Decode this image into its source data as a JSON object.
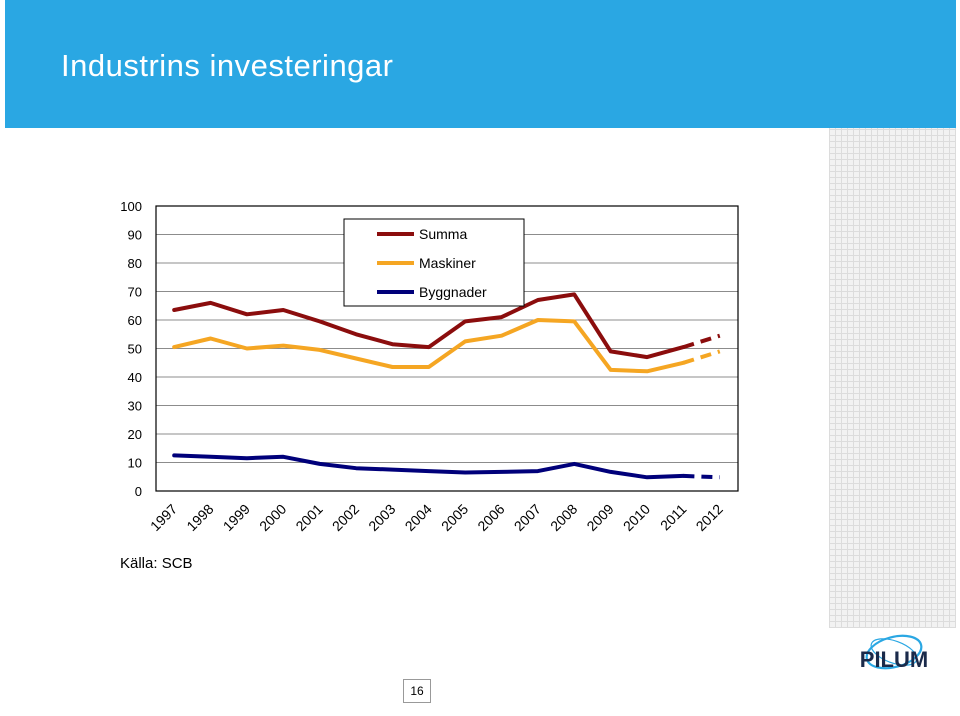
{
  "slide": {
    "title": "Industrins investeringar",
    "source": "Källa: SCB",
    "page_number": "16",
    "logo_text": "PILUM"
  },
  "colors": {
    "header": "#2aa7e3",
    "summa": "#8b0d0d",
    "maskiner": "#f5a623",
    "byggnader": "#00007a"
  },
  "chart_data": {
    "type": "line",
    "title": "",
    "xlabel": "",
    "ylabel": "",
    "ylim": [
      0,
      100
    ],
    "yticks": [
      0,
      10,
      20,
      30,
      40,
      50,
      60,
      70,
      80,
      90,
      100
    ],
    "x": [
      "1997",
      "1998",
      "1999",
      "2000",
      "2001",
      "2002",
      "2003",
      "2004",
      "2005",
      "2006",
      "2007",
      "2008",
      "2009",
      "2010",
      "2011",
      "2012"
    ],
    "grid": "horizontal",
    "legend_position": "top-center",
    "forecast_from": "2011",
    "series": [
      {
        "name": "Summa",
        "values": [
          63.5,
          66,
          62,
          63.5,
          59.5,
          55,
          51.5,
          50.5,
          59.5,
          61,
          67,
          69,
          49,
          47,
          50.5,
          54.5
        ]
      },
      {
        "name": "Maskiner",
        "values": [
          50.5,
          53.5,
          50,
          51,
          49.5,
          46.5,
          43.5,
          43.5,
          52.5,
          54.5,
          60,
          59.5,
          42.5,
          42,
          45,
          49
        ]
      },
      {
        "name": "Byggnader",
        "values": [
          12.5,
          12,
          11.5,
          12,
          9.5,
          8,
          7.5,
          7,
          6.5,
          6.7,
          7,
          9.5,
          6.7,
          4.8,
          5.3,
          4.8
        ]
      }
    ]
  }
}
